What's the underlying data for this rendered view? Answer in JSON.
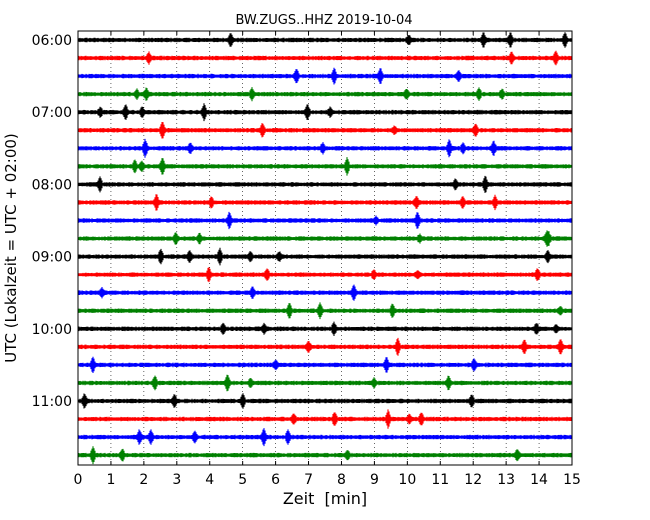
{
  "chart_data": {
    "type": "line",
    "title": "BW.ZUGS..HHZ 2019-10-04",
    "xlabel": "Zeit  [min]",
    "ylabel": "UTC (Lokalzeit = UTC + 02:00)",
    "xlim": [
      0,
      15
    ],
    "x_ticks": [
      "0",
      "1",
      "2",
      "3",
      "4",
      "5",
      "6",
      "7",
      "8",
      "9",
      "10",
      "11",
      "12",
      "13",
      "14",
      "15"
    ],
    "y_ticks": [
      "06:00",
      "07:00",
      "08:00",
      "09:00",
      "10:00",
      "11:00"
    ],
    "grid": "dotted vertical lines",
    "series_colors": [
      "#000000",
      "#ff0000",
      "#0000ff",
      "#008000"
    ],
    "traces": [
      {
        "start": "06:00",
        "color": "#000000"
      },
      {
        "start": "06:15",
        "color": "#ff0000"
      },
      {
        "start": "06:30",
        "color": "#0000ff"
      },
      {
        "start": "06:45",
        "color": "#008000"
      },
      {
        "start": "07:00",
        "color": "#000000"
      },
      {
        "start": "07:15",
        "color": "#ff0000"
      },
      {
        "start": "07:30",
        "color": "#0000ff"
      },
      {
        "start": "07:45",
        "color": "#008000"
      },
      {
        "start": "08:00",
        "color": "#000000"
      },
      {
        "start": "08:15",
        "color": "#ff0000"
      },
      {
        "start": "08:30",
        "color": "#0000ff"
      },
      {
        "start": "08:45",
        "color": "#008000"
      },
      {
        "start": "09:00",
        "color": "#000000"
      },
      {
        "start": "09:15",
        "color": "#ff0000"
      },
      {
        "start": "09:30",
        "color": "#0000ff"
      },
      {
        "start": "09:45",
        "color": "#008000"
      },
      {
        "start": "10:00",
        "color": "#000000"
      },
      {
        "start": "10:15",
        "color": "#ff0000"
      },
      {
        "start": "10:30",
        "color": "#0000ff"
      },
      {
        "start": "10:45",
        "color": "#008000"
      },
      {
        "start": "11:00",
        "color": "#000000"
      },
      {
        "start": "11:15",
        "color": "#ff0000"
      },
      {
        "start": "11:30",
        "color": "#0000ff"
      },
      {
        "start": "11:45",
        "color": "#008000"
      }
    ]
  }
}
